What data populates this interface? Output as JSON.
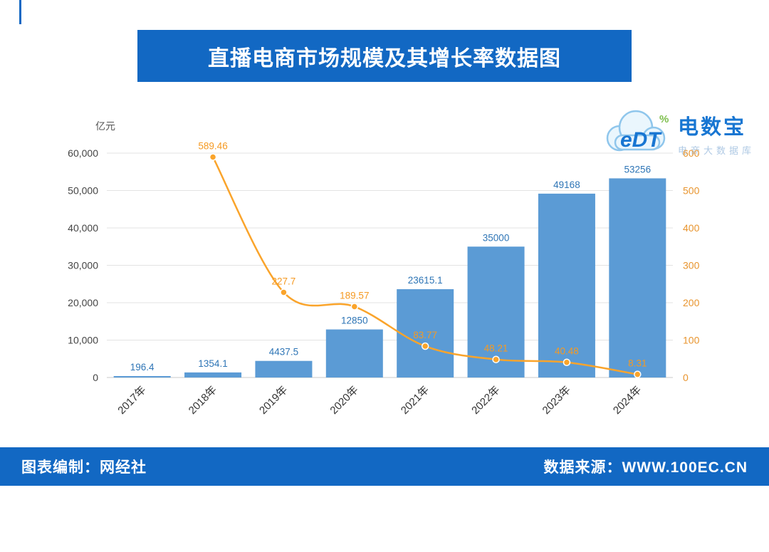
{
  "header": {
    "title": "直播电商市场规模及其增长率数据图"
  },
  "logo": {
    "mark": "eDT",
    "percent": "%",
    "brand": "电数宝",
    "sub": "电商大数据库"
  },
  "footer": {
    "left": "图表编制：网经社",
    "right": "数据来源：WWW.100EC.CN"
  },
  "theme": {
    "banner_blue": "#1268C3",
    "bar_blue": "#5B9BD5",
    "line_orange": "#FAA42B"
  },
  "chart_data": {
    "type": "bar",
    "subtype": "bar+line combo, dual axis",
    "categories": [
      "2017年",
      "2018年",
      "2019年",
      "2020年",
      "2021年",
      "2022年",
      "2023年",
      "2024年"
    ],
    "series": [
      {
        "name": "市场规模",
        "type": "bar",
        "axis": "left",
        "color": "#5B9BD5",
        "values": [
          196.4,
          1354.1,
          4437.5,
          12850,
          23615.1,
          35000,
          49168,
          53256
        ],
        "labels": [
          "196.4",
          "1354.1",
          "4437.5",
          "12850",
          "23615.1",
          "35000",
          "49168",
          "53256"
        ]
      },
      {
        "name": "增长率",
        "type": "line",
        "axis": "right",
        "color": "#FAA42B",
        "x_start_index": 1,
        "values": [
          589.46,
          227.7,
          189.57,
          83.77,
          48.21,
          40.48,
          8.31
        ],
        "labels": [
          "589.46",
          "227.7",
          "189.57",
          "83.77",
          "48.21",
          "40.48",
          "8.31"
        ]
      }
    ],
    "left_axis": {
      "title": "亿元",
      "min": 0,
      "max": 60000,
      "step": 10000,
      "tick_labels": [
        "0",
        "10,000",
        "20,000",
        "30,000",
        "40,000",
        "50,000",
        "60,000"
      ]
    },
    "right_axis": {
      "min": 0,
      "max": 600,
      "step": 100,
      "tick_labels": [
        "0",
        "100",
        "200",
        "300",
        "400",
        "500",
        "600"
      ]
    },
    "grid": true,
    "legend": "none"
  }
}
